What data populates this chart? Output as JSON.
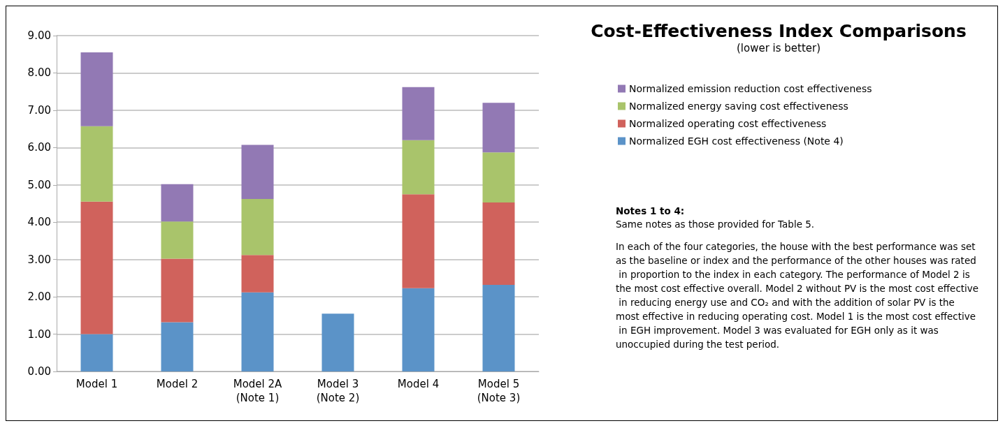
{
  "chart_data": {
    "type": "bar",
    "title": "Cost-Effectiveness Index Comparisons",
    "subtitle": "(lower is better)",
    "categories": [
      "Model 1",
      "Model 2",
      "Model 2A\n(Note 1)",
      "Model 3\n(Note 2)",
      "Model 4",
      "Model 5\n(Note 3)"
    ],
    "stacked": true,
    "series": [
      {
        "name": "Normalized EGH cost effectiveness (Note 4)",
        "color": "#5b93c8",
        "values": [
          1.0,
          1.32,
          2.12,
          1.55,
          2.23,
          2.32
        ]
      },
      {
        "name": "Normalized operating cost effectiveness",
        "color": "#d0625c",
        "values": [
          3.55,
          1.7,
          1.0,
          null,
          2.52,
          2.21
        ]
      },
      {
        "name": "Normalized energy saving cost effectiveness",
        "color": "#a9c46b",
        "values": [
          2.02,
          1.0,
          1.5,
          null,
          1.45,
          1.34
        ]
      },
      {
        "name": "Normalized emission reduction cost effectiveness",
        "color": "#9279b4",
        "values": [
          1.98,
          1.0,
          1.45,
          null,
          1.42,
          1.33
        ]
      }
    ],
    "ylim": [
      0,
      9
    ],
    "yticks": [
      {
        "value": 0,
        "label": "0.00"
      },
      {
        "value": 1,
        "label": "1.00"
      },
      {
        "value": 2,
        "label": "2.00"
      },
      {
        "value": 3,
        "label": "3.00"
      },
      {
        "value": 4,
        "label": "4.00"
      },
      {
        "value": 5,
        "label": "5.00"
      },
      {
        "value": 6,
        "label": "6.00"
      },
      {
        "value": 7,
        "label": "7.00"
      },
      {
        "value": 8,
        "label": "8.00"
      },
      {
        "value": 9,
        "label": "9.00"
      }
    ],
    "grid": "y",
    "legend": "right",
    "annotations": [
      "Notes 1 to 4:",
      "Same notes as those provided for Table 5.",
      "In each of the four categories, the house with the best performance was set as the baseline or index and the performance of the other houses was rated in proportion to the index in each category. The performance of Model 2 is the most cost effective overall. Model 2 without PV is the most cost effective in reducing energy use and CO₂ and with the addition of solar PV is the most effective in reducing operating cost. Model 1 is the most cost effective in EGH improvement. Model 3 was evaluated for EGH only as it was unoccupied during the test period."
    ]
  }
}
